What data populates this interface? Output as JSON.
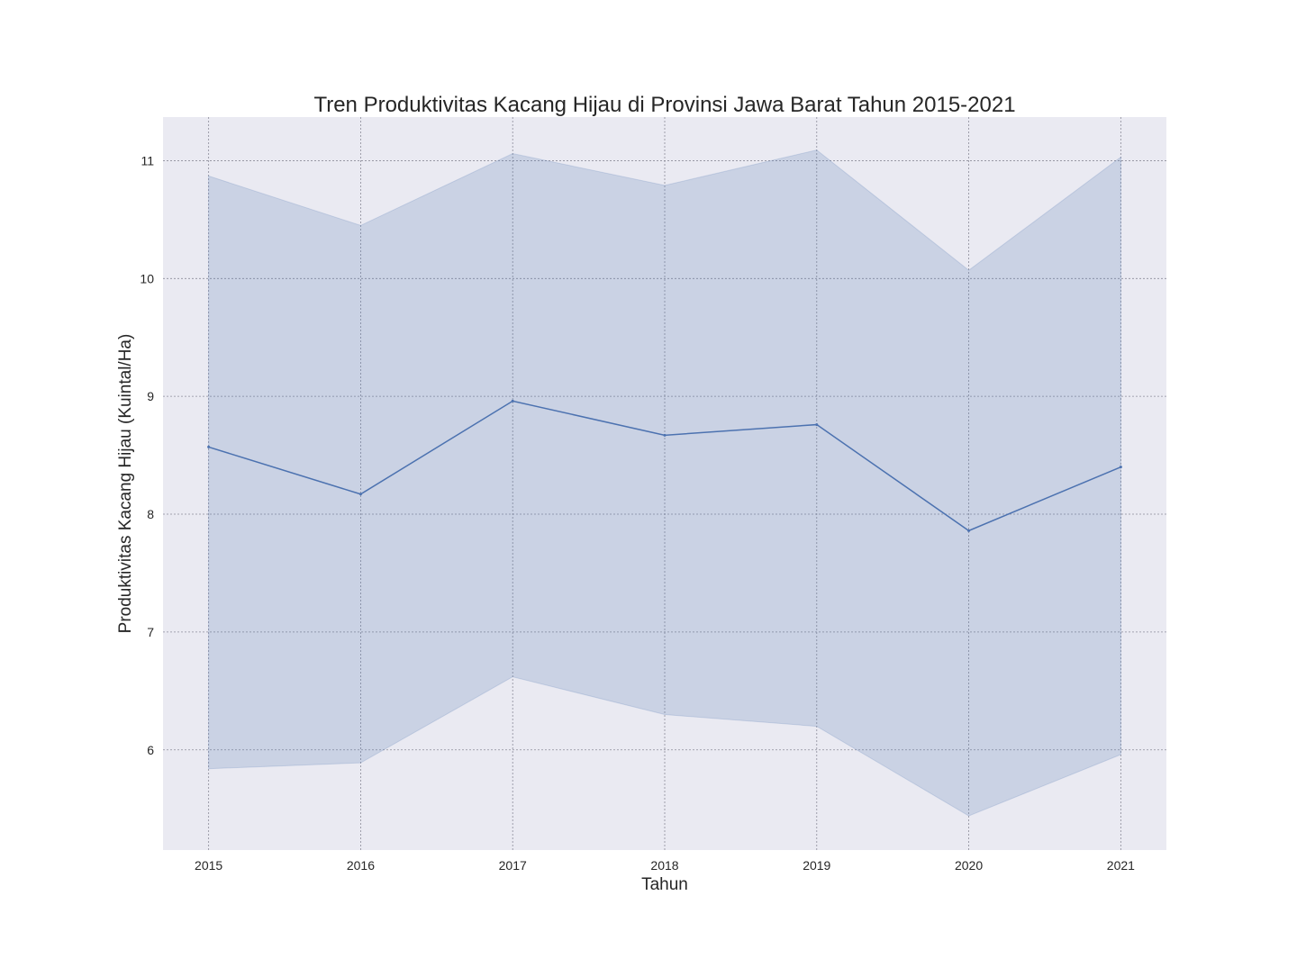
{
  "chart_data": {
    "type": "line",
    "title": "Tren Produktivitas Kacang Hijau di Provinsi Jawa Barat Tahun 2015-2021",
    "xlabel": "Tahun",
    "ylabel": "Produktivitas Kacang Hijau (Kuintal/Ha)",
    "x": [
      2015,
      2016,
      2017,
      2018,
      2019,
      2020,
      2021
    ],
    "xlim": [
      2014.7,
      2021.3
    ],
    "ylim": [
      5.15,
      11.37
    ],
    "yticks": [
      6,
      7,
      8,
      9,
      10,
      11
    ],
    "grid": true,
    "series": [
      {
        "name": "Produktivitas",
        "values": [
          8.57,
          8.17,
          8.96,
          8.67,
          8.76,
          7.86,
          8.4
        ],
        "ci_upper": [
          10.87,
          10.45,
          11.06,
          10.79,
          11.09,
          10.07,
          11.03
        ],
        "ci_lower": [
          5.84,
          5.89,
          6.62,
          6.3,
          6.2,
          5.44,
          5.96
        ]
      }
    ],
    "colors": {
      "line": "#4c72b0",
      "band": "#4c72b0",
      "plot_background": "#eaeaf2",
      "grid": "#8c8c99"
    }
  }
}
